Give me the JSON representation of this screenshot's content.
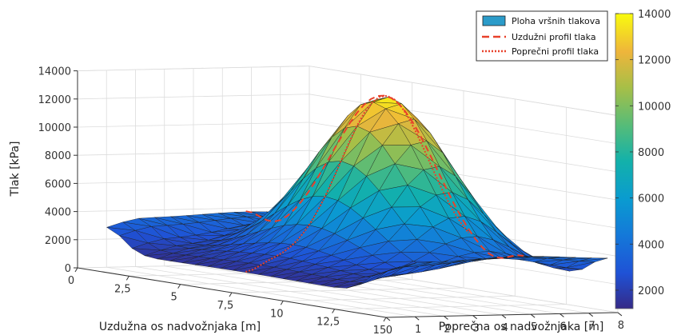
{
  "chart_data": {
    "type": "surface3d",
    "xlabel": "Uzdužna os nadvožnjaka [m]",
    "ylabel": "Poprečna os nadvožnjaka [m]",
    "zlabel": "Tlak [kPa]",
    "x_ticks": [
      "0",
      "2,5",
      "5",
      "7,5",
      "10",
      "12,5",
      "15"
    ],
    "y_ticks": [
      "0",
      "1",
      "2",
      "3",
      "4",
      "5",
      "6",
      "7",
      "8"
    ],
    "z_ticks": [
      "0",
      "2000",
      "4000",
      "6000",
      "8000",
      "10000",
      "12000",
      "14000"
    ],
    "xlim": [
      0,
      15
    ],
    "ylim": [
      0,
      8
    ],
    "zlim": [
      0,
      14000
    ],
    "colorbar": {
      "colormap": "parula",
      "limits": [
        1200,
        14000
      ],
      "ticks": [
        "2000",
        "4000",
        "6000",
        "8000",
        "10000",
        "12000",
        "14000"
      ]
    },
    "legend_position": "top-right",
    "legend": [
      "Ploha vršnih tlakova",
      "Uzdužni profil tlaka",
      "Poprečni profil tlaka"
    ],
    "surface": {
      "x_range": [
        1,
        14.5
      ],
      "y_range": [
        0.3,
        8
      ],
      "peak_pressure": 13800,
      "base_pressure": 2000
    },
    "grid": true
  }
}
